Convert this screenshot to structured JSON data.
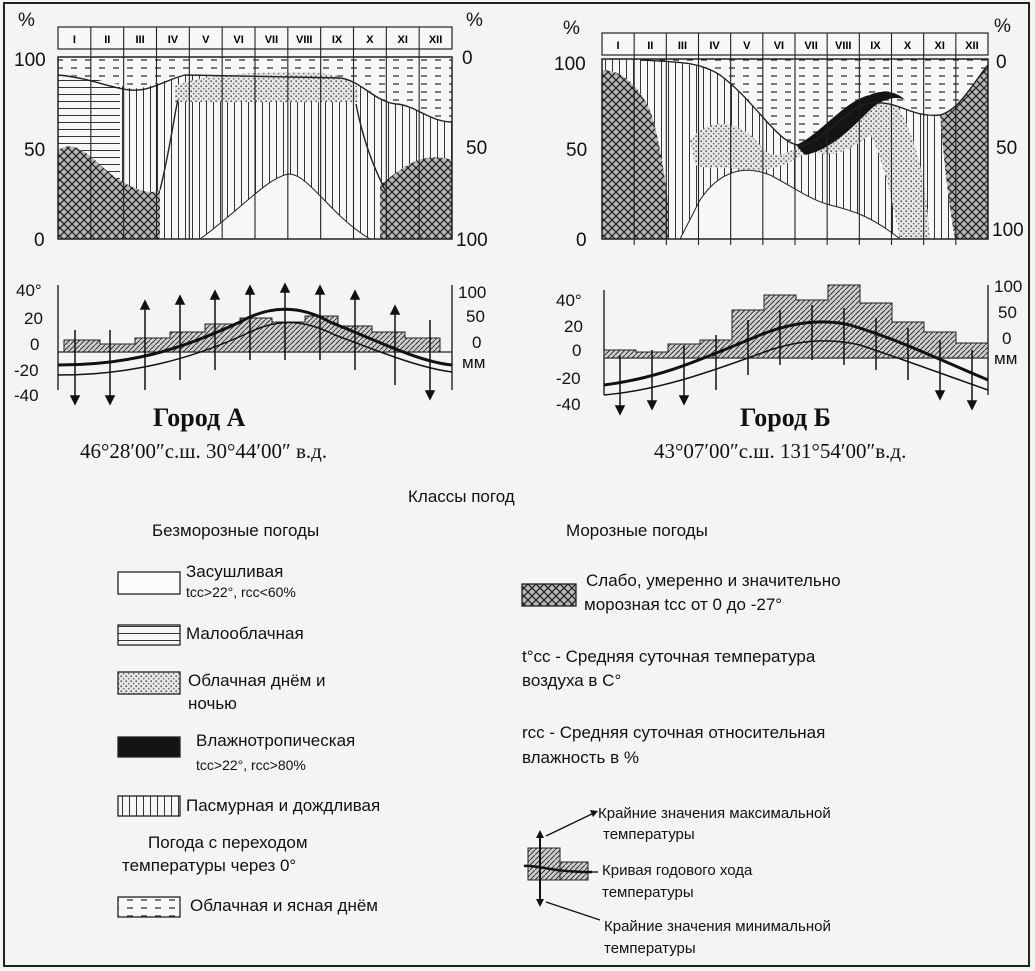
{
  "panels": [
    {
      "months": [
        "I",
        "II",
        "III",
        "IV",
        "V",
        "VI",
        "VII",
        "VIII",
        "IX",
        "X",
        "XI",
        "XII"
      ],
      "axis_left_unit": "%",
      "axis_right_unit": "%",
      "axis_left_ticks": [
        "100",
        "50",
        "0"
      ],
      "axis_right_ticks": [
        "0",
        "50",
        "100"
      ],
      "temp_left_ticks": [
        "40°",
        "20",
        "0",
        "-20",
        "-40"
      ],
      "temp_right_ticks": [
        "100",
        "50",
        "0",
        "мм"
      ],
      "city": "Город А",
      "coords": "46°28′00″с.ш.  30°44′00″ в.д."
    },
    {
      "months": [
        "I",
        "II",
        "III",
        "IV",
        "V",
        "VI",
        "VII",
        "VIII",
        "IX",
        "X",
        "XI",
        "XII"
      ],
      "axis_left_unit": "%",
      "axis_right_unit": "%",
      "axis_left_ticks": [
        "100",
        "50",
        "0"
      ],
      "axis_right_ticks": [
        "0",
        "50",
        "100"
      ],
      "temp_left_ticks": [
        "40°",
        "20",
        "0",
        "-20",
        "-40"
      ],
      "temp_right_ticks": [
        "100",
        "50",
        "0",
        "мм"
      ],
      "city": "Город Б",
      "coords": "43°07′00″с.ш. 131°54′00″в.д."
    }
  ],
  "legend": {
    "title": "Классы погод",
    "left_header": "Безморозные погоды",
    "right_header": "Морозные погоды",
    "arid_1": "Засушливая",
    "arid_2": "tсс>22°, rсс<60%",
    "low_cloud": "Малооблачная",
    "cloudy_1": "Облачная днём и",
    "cloudy_2": "ночью",
    "humid_1": "Влажнотропическая",
    "humid_2": "tсс>22°, rсс>80%",
    "rainy": "Пасмурная и дождливая",
    "transition_1": "Погода с переходом",
    "transition_2": "температуры через 0°",
    "clear_day": "Облачная и ясная днём",
    "frost_1": "Слабо, умеренно и значительно",
    "frost_2": "морозная  tсс от 0 до -27°",
    "tcc_1": "t°сс - Средняя суточная температура",
    "tcc_2": "воздуха в С°",
    "rcc_1": "rсс - Средняя суточная относительная",
    "rcc_2": "влажность в %",
    "max_1": "Крайние значения максимальной",
    "max_2": "температуры",
    "curve_1": "Кривая годового хода",
    "curve_2": "температуры",
    "min_1": "Крайние значения минимальной",
    "min_2": "температуры"
  }
}
